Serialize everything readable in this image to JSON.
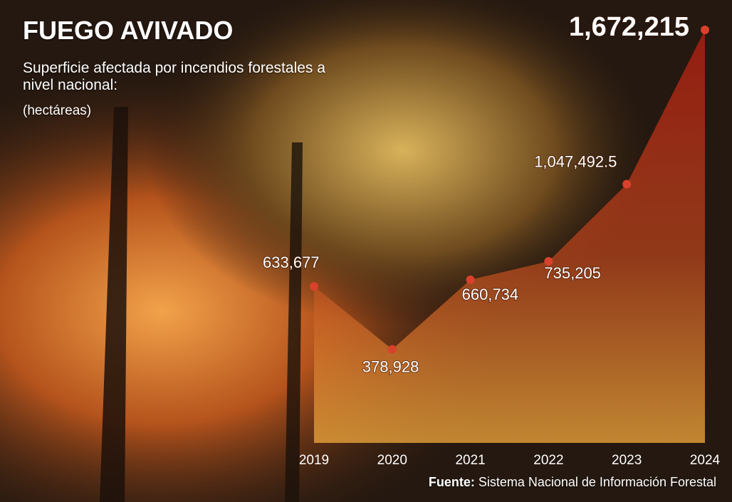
{
  "chart_data": {
    "type": "area",
    "title": "FUEGO AVIVADO",
    "subtitle": "Superficie afectada por incendios forestales a nivel nacional:",
    "unit": "(hectáreas)",
    "x": [
      2019,
      2020,
      2021,
      2022,
      2023,
      2024
    ],
    "values": [
      633677,
      378928,
      660734,
      735205,
      1047492.5,
      1672215
    ],
    "value_labels": [
      "633,677",
      "378,928",
      "660,734",
      "735,205",
      "1,047,492.5",
      "1,672,215"
    ],
    "color": "#d8412c",
    "source_label": "Fuente:",
    "source": "Sistema Nacional de Información Forestal"
  }
}
